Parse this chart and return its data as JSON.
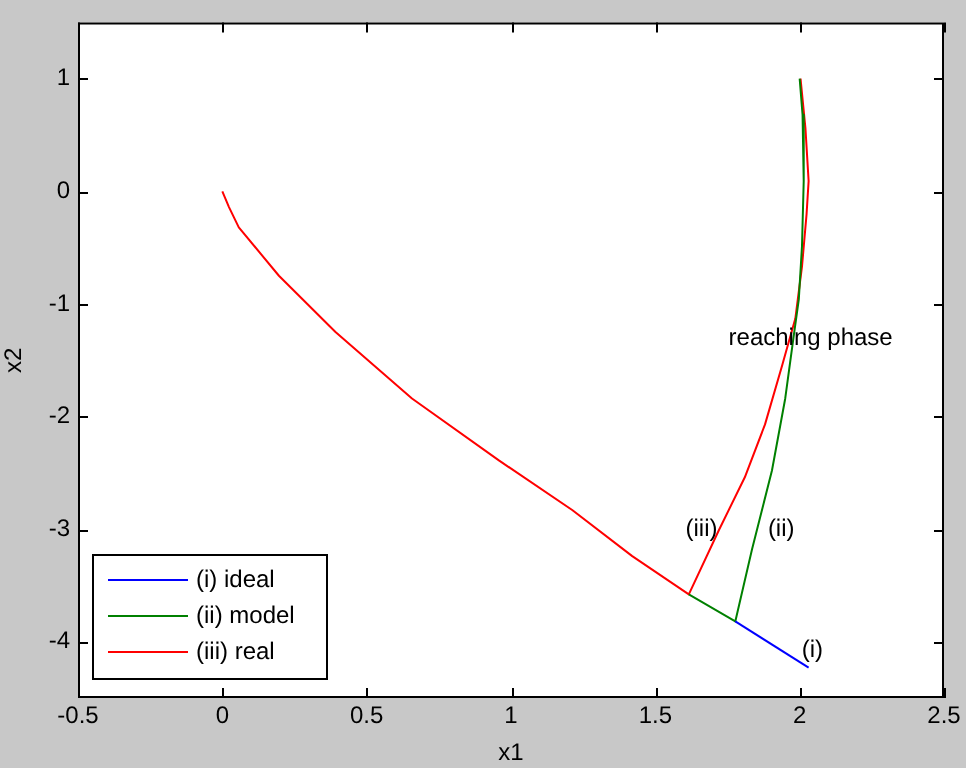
{
  "chart_data": {
    "type": "line",
    "xlabel": "x1",
    "ylabel": "x2",
    "xlim": [
      -0.5,
      2.5
    ],
    "xticks": [
      -0.5,
      0,
      0.5,
      1,
      1.5,
      2,
      2.5
    ],
    "ylim": [
      -4.5,
      1.5
    ],
    "yticks": [
      -4,
      -3,
      -2,
      -1,
      0,
      1
    ],
    "grid": false,
    "legend": "bottom left",
    "marker": "none",
    "line_style": "solid",
    "series": [
      {
        "name": "(i) ideal",
        "color": "#0000ff",
        "x": [
          2.031,
          1.777
        ],
        "values": [
          -4.23,
          -3.82
        ]
      },
      {
        "name": "(ii) model",
        "color": "#008000",
        "x": [
          2.0,
          2.01,
          2.014,
          2.008,
          1.997,
          1.978,
          1.95,
          1.904,
          1.835,
          1.777,
          1.616
        ],
        "values": [
          1.0,
          0.68,
          0.09,
          -0.49,
          -0.96,
          -1.31,
          -1.84,
          -2.48,
          -3.18,
          -3.82,
          -3.58
        ]
      },
      {
        "name": "(iii) real",
        "color": "#ff0000",
        "x": [
          2.003,
          2.02,
          2.031,
          2.024,
          2.008,
          1.985,
          1.94,
          1.88,
          1.81,
          1.72,
          1.616,
          1.42,
          1.212,
          0.958,
          0.657,
          0.392,
          0.196,
          0.057,
          0.023,
          0
        ],
        "values": [
          1.0,
          0.56,
          0.09,
          -0.2,
          -0.67,
          -1.13,
          -1.54,
          -2.07,
          -2.54,
          -3.01,
          -3.58,
          -3.24,
          -2.83,
          -2.39,
          -1.84,
          -1.25,
          -0.75,
          -0.32,
          -0.14,
          0
        ]
      }
    ],
    "annotations": [
      "reaching phase",
      "(i)",
      "(ii)",
      "(iii)"
    ]
  }
}
